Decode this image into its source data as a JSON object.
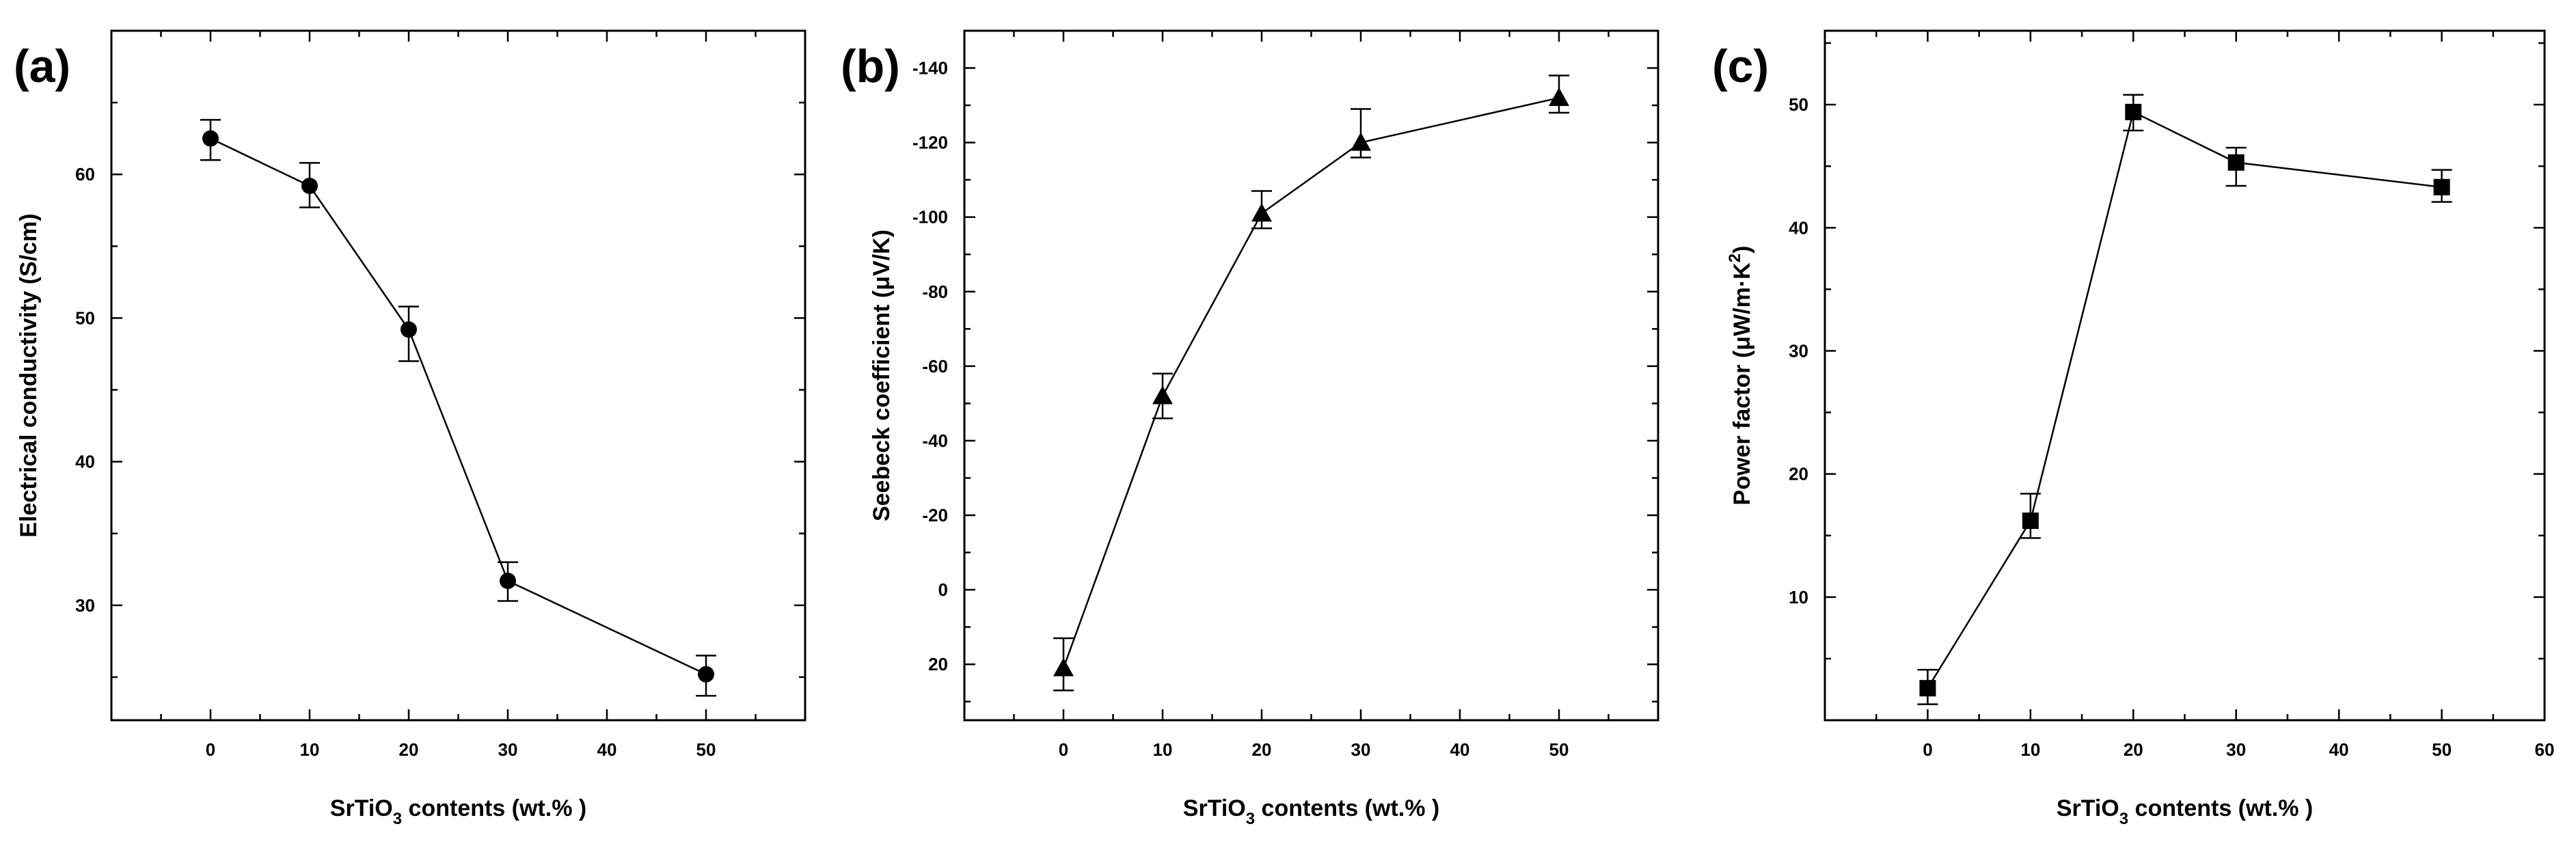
{
  "chart_data": [
    {
      "type": "line",
      "panel": "(a)",
      "xlabel_main": "SrTiO",
      "xlabel_sub": "3",
      "xlabel_rest": " contents (wt.% )",
      "ylabel": "Electrical conductivity (S/cm)",
      "xlim": [
        -10,
        60
      ],
      "ylim": [
        22,
        70
      ],
      "xticks": [
        0,
        10,
        20,
        30,
        40,
        50
      ],
      "yticks": [
        30,
        40,
        50,
        60
      ],
      "ytick_labels": [
        "30",
        "40",
        "50",
        "60"
      ],
      "marker": "circle",
      "x": [
        0,
        10,
        20,
        30,
        50
      ],
      "values": [
        62.5,
        59.2,
        49.2,
        31.7,
        25.2
      ],
      "err_low": [
        1.5,
        1.5,
        2.2,
        1.4,
        1.5
      ],
      "err_high": [
        1.3,
        1.6,
        1.6,
        1.3,
        1.3
      ]
    },
    {
      "type": "line",
      "panel": "(b)",
      "xlabel_main": "SrTiO",
      "xlabel_sub": "3",
      "xlabel_rest": " contents (wt.% )",
      "ylabel": "Seebeck coefficient (μV/K)",
      "xlim": [
        -10,
        60
      ],
      "ylim": [
        35,
        -150
      ],
      "inverted": true,
      "xticks": [
        0,
        10,
        20,
        30,
        40,
        50
      ],
      "yticks": [
        20,
        0,
        -20,
        -40,
        -60,
        -80,
        -100,
        -120,
        -140
      ],
      "ytick_labels": [
        "20",
        "0",
        "-20",
        "-40",
        "-60",
        "-80",
        "-100",
        "-120",
        "-140"
      ],
      "marker": "triangle",
      "x": [
        0,
        10,
        20,
        30,
        50
      ],
      "values": [
        21,
        -52,
        -101,
        -120,
        -132
      ],
      "err_low": [
        6,
        6,
        4,
        4,
        4
      ],
      "err_high": [
        8,
        6,
        6,
        9,
        6
      ]
    },
    {
      "type": "line",
      "panel": "(c)",
      "xlabel_main": "SrTiO",
      "xlabel_sub": "3",
      "xlabel_rest": " contents (wt.% )",
      "ylabel_main": "Power factor (μW/m·K",
      "ylabel_sup": "2",
      "ylabel_end": ")",
      "xlim": [
        -10,
        60
      ],
      "ylim": [
        0,
        56
      ],
      "xticks": [
        0,
        10,
        20,
        30,
        40,
        50,
        60
      ],
      "yticks": [
        10,
        20,
        30,
        40,
        50
      ],
      "ytick_labels": [
        "10",
        "20",
        "30",
        "40",
        "50"
      ],
      "marker": "square",
      "x": [
        0,
        10,
        20,
        30,
        50
      ],
      "values": [
        2.6,
        16.2,
        49.4,
        45.3,
        43.3
      ],
      "err_low": [
        1.3,
        1.4,
        1.5,
        1.9,
        1.2
      ],
      "err_high": [
        1.5,
        2.2,
        1.4,
        1.2,
        1.4
      ]
    }
  ]
}
